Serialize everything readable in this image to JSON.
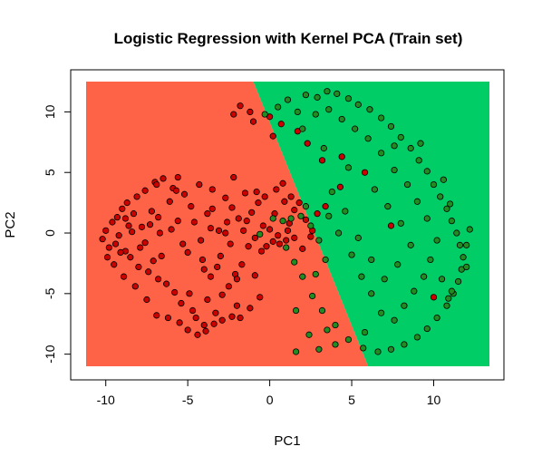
{
  "chart_data": {
    "type": "scatter",
    "title": "Logistic Regression with Kernel PCA (Train set)",
    "xlabel": "PC1",
    "ylabel": "PC2",
    "xlim": [
      -11.2,
      13.4
    ],
    "ylim": [
      -11.0,
      12.5
    ],
    "xticks": [
      -10,
      -5,
      0,
      5,
      10
    ],
    "yticks": [
      -10,
      -5,
      0,
      5,
      10
    ],
    "grid": false,
    "legend": "none",
    "region_colors": {
      "class0": "#ff6347",
      "class1": "#00cd66"
    },
    "point_colors": {
      "class0": "#cd0000",
      "class1": "#228b22"
    },
    "decision_boundary": [
      [
        -1.0,
        12.5
      ],
      [
        6.0,
        -11.0
      ]
    ],
    "class0_points": [
      [
        -10.2,
        -0.5
      ],
      [
        -10.0,
        0.2
      ],
      [
        -9.8,
        -1.2
      ],
      [
        -9.6,
        0.9
      ],
      [
        -9.9,
        -2.0
      ],
      [
        -9.5,
        -2.6
      ],
      [
        -9.3,
        1.3
      ],
      [
        -9.2,
        -0.2
      ],
      [
        -9.0,
        2.0
      ],
      [
        -8.8,
        -1.5
      ],
      [
        -8.7,
        2.5
      ],
      [
        -8.5,
        -2.0
      ],
      [
        -8.3,
        1.6
      ],
      [
        -8.1,
        3.0
      ],
      [
        -8.0,
        -2.8
      ],
      [
        -7.8,
        0.5
      ],
      [
        -7.6,
        3.5
      ],
      [
        -7.4,
        -3.2
      ],
      [
        -7.2,
        1.8
      ],
      [
        -7.0,
        4.2
      ],
      [
        -6.8,
        -3.8
      ],
      [
        -6.7,
        0.0
      ],
      [
        -6.5,
        4.5
      ],
      [
        -6.3,
        -4.2
      ],
      [
        -6.1,
        2.6
      ],
      [
        -5.9,
        3.7
      ],
      [
        -5.8,
        -4.9
      ],
      [
        -5.6,
        1.0
      ],
      [
        -5.4,
        -5.8
      ],
      [
        -5.2,
        3.2
      ],
      [
        -5.0,
        -1.6
      ],
      [
        -4.8,
        2.2
      ],
      [
        -4.7,
        -6.4
      ],
      [
        -4.5,
        -7.0
      ],
      [
        -4.3,
        4.0
      ],
      [
        -4.2,
        -0.6
      ],
      [
        -4.0,
        -7.6
      ],
      [
        -3.8,
        1.6
      ],
      [
        -3.6,
        -3.6
      ],
      [
        -3.5,
        3.6
      ],
      [
        -3.3,
        -6.6
      ],
      [
        -3.1,
        0.2
      ],
      [
        -2.9,
        -5.1
      ],
      [
        -2.7,
        2.9
      ],
      [
        -2.5,
        -4.4
      ],
      [
        -2.4,
        -0.9
      ],
      [
        -2.2,
        4.6
      ],
      [
        -2.0,
        -6.0
      ],
      [
        -1.9,
        1.2
      ],
      [
        -1.7,
        -2.6
      ],
      [
        -1.5,
        3.3
      ],
      [
        -1.3,
        -1.1
      ],
      [
        -1.1,
        1.7
      ],
      [
        -0.9,
        -0.4
      ],
      [
        -0.7,
        2.5
      ],
      [
        -0.5,
        -1.5
      ],
      [
        -0.3,
        3.0
      ],
      [
        0.0,
        0.3
      ],
      [
        0.3,
        1.6
      ],
      [
        0.6,
        -0.9
      ],
      [
        0.9,
        2.6
      ],
      [
        1.2,
        0.8
      ],
      [
        1.5,
        1.9
      ],
      [
        -8.9,
        -3.6
      ],
      [
        -8.2,
        -4.4
      ],
      [
        -7.5,
        -5.5
      ],
      [
        -6.9,
        -6.8
      ],
      [
        -6.2,
        -7.0
      ],
      [
        -5.5,
        -7.4
      ],
      [
        -5.0,
        -8.0
      ],
      [
        -4.4,
        -8.4
      ],
      [
        -3.9,
        -8.1
      ],
      [
        -3.4,
        -7.5
      ],
      [
        -2.9,
        -7.2
      ],
      [
        -2.3,
        -6.9
      ],
      [
        -1.8,
        -7.0
      ],
      [
        -1.2,
        -6.2
      ],
      [
        -0.6,
        -5.3
      ],
      [
        -9.4,
        -0.9
      ],
      [
        -8.6,
        0.6
      ],
      [
        -7.9,
        -1.2
      ],
      [
        -7.3,
        0.7
      ],
      [
        -6.6,
        -1.9
      ],
      [
        -6.0,
        0.3
      ],
      [
        -5.3,
        -0.9
      ],
      [
        -4.6,
        0.9
      ],
      [
        -4.1,
        -2.2
      ],
      [
        -3.6,
        0.4
      ],
      [
        -3.0,
        -1.9
      ],
      [
        -2.6,
        0.9
      ],
      [
        -2.1,
        -3.4
      ],
      [
        -1.6,
        0.2
      ],
      [
        0.4,
        3.6
      ],
      [
        0.8,
        4.1
      ],
      [
        1.3,
        3.0
      ],
      [
        1.8,
        2.5
      ],
      [
        2.2,
        1.1
      ],
      [
        2.6,
        0.2
      ],
      [
        0.2,
        -0.7
      ],
      [
        -0.2,
        -1.1
      ],
      [
        1.0,
        -0.6
      ],
      [
        1.5,
        -0.4
      ],
      [
        2.0,
        -1.3
      ],
      [
        2.5,
        -0.3
      ],
      [
        -1.2,
        10.0
      ],
      [
        -1.8,
        10.5
      ],
      [
        -2.2,
        9.8
      ],
      [
        -1.0,
        9.2
      ],
      [
        0.0,
        9.6
      ],
      [
        0.7,
        9.0
      ],
      [
        0.2,
        8.0
      ],
      [
        1.7,
        8.4
      ],
      [
        2.3,
        7.4
      ],
      [
        3.2,
        6.0
      ],
      [
        4.4,
        6.3
      ],
      [
        4.3,
        3.8
      ],
      [
        5.8,
        5.0
      ],
      [
        7.4,
        0.6
      ],
      [
        10.0,
        -5.3
      ],
      [
        2.9,
        1.6
      ],
      [
        3.4,
        2.2
      ],
      [
        -5.6,
        4.6
      ],
      [
        -6.9,
        4.0
      ],
      [
        -8.4,
        0.1
      ],
      [
        -7.1,
        -2.3
      ],
      [
        -2.0,
        -3.8
      ],
      [
        -0.9,
        -3.5
      ],
      [
        -3.2,
        -2.8
      ],
      [
        -4.0,
        -3.0
      ],
      [
        -2.7,
        0.0
      ],
      [
        -1.4,
        1.0
      ],
      [
        -0.4,
        0.6
      ],
      [
        -0.8,
        3.4
      ],
      [
        -2.3,
        2.1
      ],
      [
        0.5,
        -0.2
      ],
      [
        1.1,
        0.2
      ],
      [
        -9.1,
        -1.6
      ],
      [
        -8.8,
        1.2
      ],
      [
        -7.6,
        -0.8
      ],
      [
        -6.8,
        1.3
      ],
      [
        -5.7,
        3.5
      ],
      [
        -4.9,
        -5.0
      ],
      [
        -3.8,
        -5.5
      ],
      [
        -3.5,
        2.0
      ]
    ],
    "class1_points": [
      [
        -0.3,
        9.8
      ],
      [
        0.5,
        10.4
      ],
      [
        1.1,
        11.0
      ],
      [
        1.7,
        10.0
      ],
      [
        2.2,
        11.4
      ],
      [
        2.9,
        11.2
      ],
      [
        3.5,
        11.7
      ],
      [
        4.1,
        11.5
      ],
      [
        4.8,
        11.1
      ],
      [
        5.4,
        10.6
      ],
      [
        6.1,
        10.2
      ],
      [
        6.8,
        9.5
      ],
      [
        7.4,
        8.8
      ],
      [
        8.0,
        7.9
      ],
      [
        8.6,
        7.0
      ],
      [
        9.1,
        6.0
      ],
      [
        9.6,
        5.1
      ],
      [
        10.0,
        4.0
      ],
      [
        10.4,
        3.0
      ],
      [
        10.8,
        2.0
      ],
      [
        11.1,
        1.0
      ],
      [
        11.4,
        0.0
      ],
      [
        11.6,
        -1.0
      ],
      [
        11.8,
        -2.0
      ],
      [
        11.7,
        -3.0
      ],
      [
        11.5,
        -4.0
      ],
      [
        11.2,
        -5.0
      ],
      [
        10.8,
        -6.0
      ],
      [
        10.2,
        -7.0
      ],
      [
        9.6,
        -7.9
      ],
      [
        9.0,
        -8.6
      ],
      [
        8.2,
        -9.2
      ],
      [
        7.4,
        -9.6
      ],
      [
        6.6,
        -9.8
      ],
      [
        5.7,
        -9.5
      ],
      [
        4.8,
        -8.8
      ],
      [
        4.0,
        -7.6
      ],
      [
        3.2,
        -6.4
      ],
      [
        2.6,
        -5.2
      ],
      [
        2.0,
        -3.6
      ],
      [
        1.5,
        -2.4
      ],
      [
        1.0,
        -1.2
      ],
      [
        0.8,
        1.0
      ],
      [
        1.3,
        1.2
      ],
      [
        2.5,
        0.6
      ],
      [
        3.0,
        -0.6
      ],
      [
        3.6,
        1.4
      ],
      [
        4.2,
        0.0
      ],
      [
        5.0,
        -1.8
      ],
      [
        5.6,
        -3.6
      ],
      [
        6.2,
        -5.0
      ],
      [
        6.8,
        -6.6
      ],
      [
        7.6,
        -7.2
      ],
      [
        8.2,
        -6.0
      ],
      [
        8.8,
        -4.8
      ],
      [
        9.4,
        -3.6
      ],
      [
        9.8,
        -2.2
      ],
      [
        10.2,
        -0.6
      ],
      [
        9.6,
        1.2
      ],
      [
        9.0,
        2.6
      ],
      [
        8.4,
        4.0
      ],
      [
        7.6,
        5.2
      ],
      [
        6.8,
        6.6
      ],
      [
        6.0,
        7.8
      ],
      [
        5.2,
        8.6
      ],
      [
        4.4,
        9.4
      ],
      [
        3.6,
        10.2
      ],
      [
        2.8,
        9.8
      ],
      [
        2.0,
        8.6
      ],
      [
        3.3,
        7.0
      ],
      [
        4.8,
        5.4
      ],
      [
        6.4,
        3.6
      ],
      [
        7.2,
        2.2
      ],
      [
        8.0,
        0.8
      ],
      [
        8.6,
        -1.0
      ],
      [
        7.8,
        -2.6
      ],
      [
        7.0,
        -3.8
      ],
      [
        6.2,
        -2.2
      ],
      [
        5.4,
        -0.4
      ],
      [
        4.6,
        1.8
      ],
      [
        3.8,
        3.4
      ],
      [
        2.2,
        2.2
      ],
      [
        1.9,
        1.4
      ],
      [
        3.4,
        -2.2
      ],
      [
        2.8,
        -3.4
      ],
      [
        1.6,
        -9.8
      ],
      [
        2.4,
        -8.4
      ],
      [
        3.5,
        -8.0
      ],
      [
        3.0,
        -9.6
      ],
      [
        1.6,
        -6.4
      ],
      [
        4.0,
        -9.2
      ],
      [
        5.8,
        -8.2
      ],
      [
        10.5,
        -3.8
      ],
      [
        11.1,
        -4.8
      ],
      [
        12.0,
        -1.0
      ],
      [
        12.2,
        0.3
      ],
      [
        11.0,
        2.4
      ],
      [
        10.6,
        4.4
      ],
      [
        9.2,
        7.4
      ],
      [
        7.6,
        7.2
      ],
      [
        10.9,
        -5.4
      ],
      [
        12.0,
        -2.8
      ],
      [
        -0.6,
        -0.1
      ],
      [
        0.2,
        1.2
      ]
    ]
  }
}
